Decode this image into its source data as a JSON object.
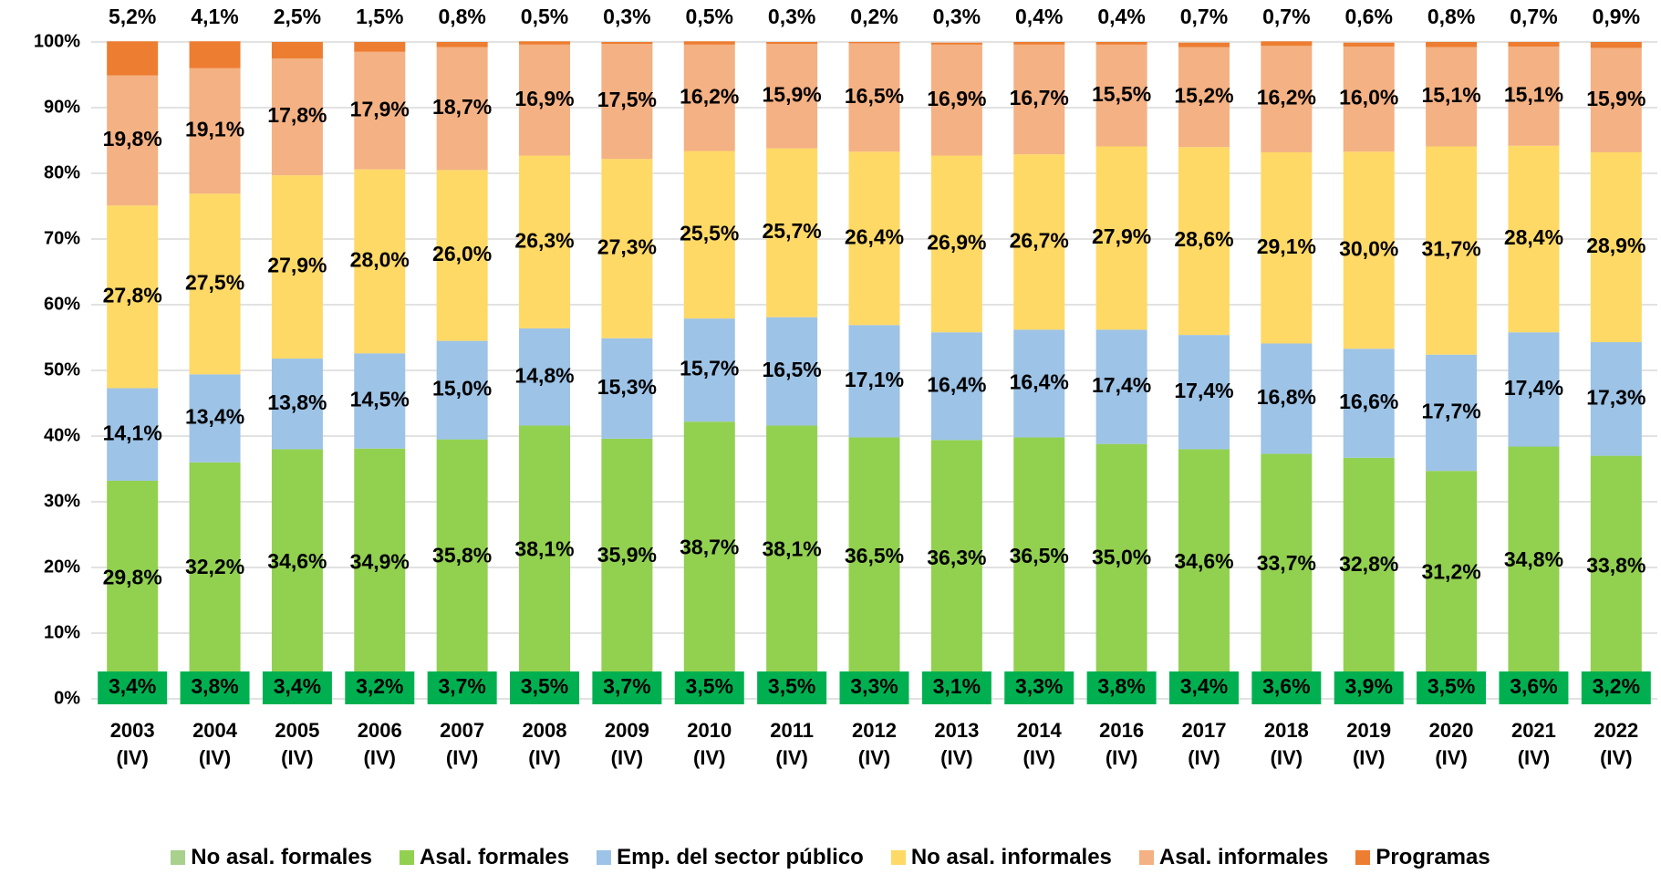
{
  "chart_data": {
    "type": "stacked_bar",
    "categories": [
      "2003 (IV)",
      "2004 (IV)",
      "2005 (IV)",
      "2006 (IV)",
      "2007 (IV)",
      "2008 (IV)",
      "2009 (IV)",
      "2010 (IV)",
      "2011 (IV)",
      "2012 (IV)",
      "2013 (IV)",
      "2014 (IV)",
      "2016 (IV)",
      "2017 (IV)",
      "2018 (IV)",
      "2019 (IV)",
      "2020 (IV)",
      "2021 (IV)",
      "2022 (IV)"
    ],
    "ylim": [
      0,
      100
    ],
    "yticks": [
      {
        "value": 0,
        "label": "0%"
      },
      {
        "value": 10,
        "label": "10%"
      },
      {
        "value": 20,
        "label": "20%"
      },
      {
        "value": 30,
        "label": "30%"
      },
      {
        "value": 40,
        "label": "40%"
      },
      {
        "value": 50,
        "label": "50%"
      },
      {
        "value": 60,
        "label": "60%"
      },
      {
        "value": 70,
        "label": "70%"
      },
      {
        "value": 80,
        "label": "80%"
      },
      {
        "value": 90,
        "label": "90%"
      },
      {
        "value": 100,
        "label": "100%"
      }
    ],
    "grid": true,
    "legend": "bottom",
    "series": [
      {
        "name": "No asal. formales",
        "color": "#a9d18e",
        "values": [
          3.4,
          3.8,
          3.4,
          3.2,
          3.7,
          3.5,
          3.7,
          3.5,
          3.5,
          3.3,
          3.1,
          3.3,
          3.8,
          3.4,
          3.6,
          3.9,
          3.5,
          3.6,
          3.2
        ],
        "value_labels": [
          "3,4%",
          "3,8%",
          "3,4%",
          "3,2%",
          "3,7%",
          "3,5%",
          "3,7%",
          "3,5%",
          "3,5%",
          "3,3%",
          "3,1%",
          "3,3%",
          "3,8%",
          "3,4%",
          "3,6%",
          "3,9%",
          "3,5%",
          "3,6%",
          "3,2%"
        ]
      },
      {
        "name": "Asal. formales",
        "color": "#92d050",
        "values": [
          29.8,
          32.2,
          34.6,
          34.9,
          35.8,
          38.1,
          35.9,
          38.7,
          38.1,
          36.5,
          36.3,
          36.5,
          35.0,
          34.6,
          33.7,
          32.8,
          31.2,
          34.8,
          33.8
        ],
        "value_labels": [
          "29,8%",
          "32,2%",
          "34,6%",
          "34,9%",
          "35,8%",
          "38,1%",
          "35,9%",
          "38,7%",
          "38,1%",
          "36,5%",
          "36,3%",
          "36,5%",
          "35,0%",
          "34,6%",
          "33,7%",
          "32,8%",
          "31,2%",
          "34,8%",
          "33,8%"
        ]
      },
      {
        "name": "Emp. del sector público",
        "color": "#9dc3e6",
        "values": [
          14.1,
          13.4,
          13.8,
          14.5,
          15.0,
          14.8,
          15.3,
          15.7,
          16.5,
          17.1,
          16.4,
          16.4,
          17.4,
          17.4,
          16.8,
          16.6,
          17.7,
          17.4,
          17.3
        ],
        "value_labels": [
          "14,1%",
          "13,4%",
          "13,8%",
          "14,5%",
          "15,0%",
          "14,8%",
          "15,3%",
          "15,7%",
          "16,5%",
          "17,1%",
          "16,4%",
          "16,4%",
          "17,4%",
          "17,4%",
          "16,8%",
          "16,6%",
          "17,7%",
          "17,4%",
          "17,3%"
        ]
      },
      {
        "name": "No asal. informales",
        "color": "#ffd966",
        "values": [
          27.8,
          27.5,
          27.9,
          28.0,
          26.0,
          26.3,
          27.3,
          25.5,
          25.7,
          26.4,
          26.9,
          26.7,
          27.9,
          28.6,
          29.1,
          30.0,
          31.7,
          28.4,
          28.9
        ],
        "value_labels": [
          "27,8%",
          "27,5%",
          "27,9%",
          "28,0%",
          "26,0%",
          "26,3%",
          "27,3%",
          "25,5%",
          "25,7%",
          "26,4%",
          "26,9%",
          "26,7%",
          "27,9%",
          "28,6%",
          "29,1%",
          "30,0%",
          "31,7%",
          "28,4%",
          "28,9%"
        ]
      },
      {
        "name": "Asal. informales",
        "color": "#f4b183",
        "values": [
          19.8,
          19.1,
          17.8,
          17.9,
          18.7,
          16.9,
          17.5,
          16.2,
          15.9,
          16.5,
          16.9,
          16.7,
          15.5,
          15.2,
          16.2,
          16.0,
          15.1,
          15.1,
          15.9
        ],
        "value_labels": [
          "19,8%",
          "19,1%",
          "17,8%",
          "17,9%",
          "18,7%",
          "16,9%",
          "17,5%",
          "16,2%",
          "15,9%",
          "16,5%",
          "16,9%",
          "16,7%",
          "15,5%",
          "15,2%",
          "16,2%",
          "16,0%",
          "15,1%",
          "15,1%",
          "15,9%"
        ]
      },
      {
        "name": "Programas",
        "color": "#ed7d31",
        "values": [
          5.2,
          4.1,
          2.5,
          1.5,
          0.8,
          0.5,
          0.3,
          0.5,
          0.3,
          0.2,
          0.3,
          0.4,
          0.4,
          0.7,
          0.7,
          0.6,
          0.8,
          0.7,
          0.9
        ],
        "value_labels": [
          "5,2%",
          "4,1%",
          "2,5%",
          "1,5%",
          "0,8%",
          "0,5%",
          "0,3%",
          "0,5%",
          "0,3%",
          "0,2%",
          "0,3%",
          "0,4%",
          "0,4%",
          "0,7%",
          "0,7%",
          "0,6%",
          "0,8%",
          "0,7%",
          "0,9%"
        ]
      }
    ]
  }
}
